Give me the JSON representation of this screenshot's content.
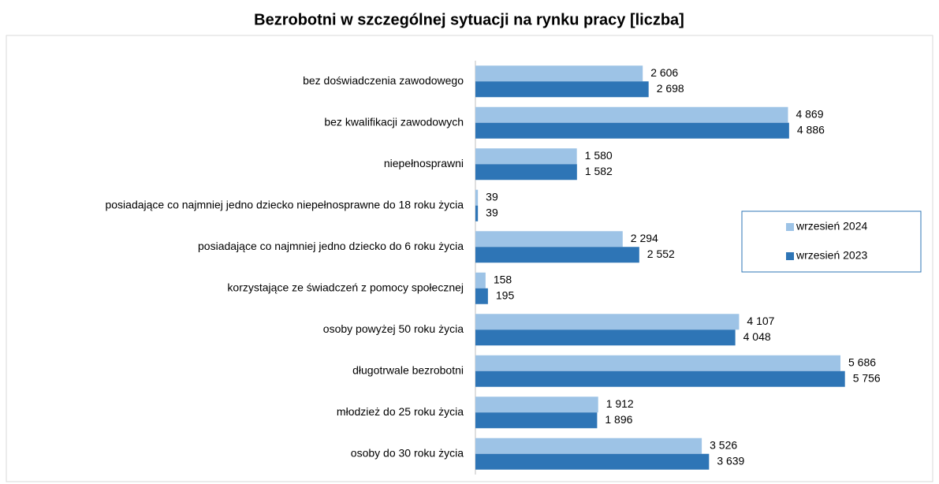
{
  "chart_data": {
    "type": "hbar",
    "title": "Bezrobotni w szczególnej sytuacji na rynku pracy [liczba]",
    "categories": [
      "bez doświadczenia zawodowego",
      "bez kwalifikacji zawodowych",
      "niepełnosprawni",
      "posiadające co najmniej jedno dziecko niepełnosprawne do 18 roku życia",
      "posiadające co najmniej jedno dziecko do 6 roku życia",
      "korzystające ze świadczeń z pomocy społecznej",
      "osoby powyżej 50 roku życia",
      "długotrwale bezrobotni",
      "młodzież do 25 roku życia",
      "osoby do 30 roku życia"
    ],
    "series": [
      {
        "name": "wrzesień 2024",
        "color": "#9dc3e6",
        "values": [
          2606,
          4869,
          1580,
          39,
          2294,
          158,
          4107,
          5686,
          1912,
          3526
        ],
        "value_labels": [
          "2 606",
          "4 869",
          "1 580",
          "39",
          "2 294",
          "158",
          "4 107",
          "5 686",
          "1 912",
          "3 526"
        ]
      },
      {
        "name": "wrzesień 2023",
        "color": "#2e75b6",
        "values": [
          2698,
          4886,
          1582,
          39,
          2552,
          195,
          4048,
          5756,
          1896,
          3639
        ],
        "value_labels": [
          "2 698",
          "4 886",
          "1 582",
          "39",
          "2 552",
          "195",
          "4 048",
          "5 756",
          "1 896",
          "3 639"
        ]
      }
    ],
    "xlim": [
      0,
      7000
    ],
    "legend": "right"
  }
}
